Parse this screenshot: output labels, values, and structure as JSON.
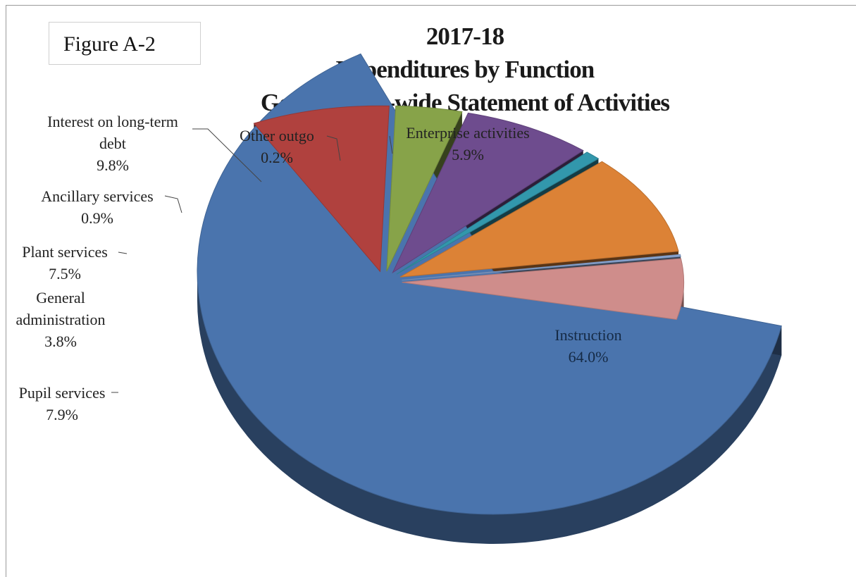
{
  "figure_label": "Figure A-2",
  "chart_data": {
    "type": "pie",
    "title": [
      "2017-18",
      "Expenditures by Function",
      "Government-wide  Statement of Activities"
    ],
    "unit": "%",
    "slices": [
      {
        "label": "Instruction",
        "value": 64.0,
        "display": "64.0%",
        "color": "#4a74ad"
      },
      {
        "label": "Pupil services",
        "value": 7.9,
        "display": "7.9%",
        "color": "#b0413e"
      },
      {
        "label": "General administration",
        "value": 3.8,
        "display": "3.8%",
        "color": "#87a349"
      },
      {
        "label": "Plant services",
        "value": 7.5,
        "display": "7.5%",
        "color": "#6e4c8e"
      },
      {
        "label": "Ancillary services",
        "value": 0.9,
        "display": "0.9%",
        "color": "#3297ac"
      },
      {
        "label": "Interest on long-term debt",
        "value": 9.8,
        "display": "9.8%",
        "color": "#dc8236"
      },
      {
        "label": "Other outgo",
        "value": 0.2,
        "display": "0.2%",
        "color": "#8aa6d2"
      },
      {
        "label": "Enterprise activities",
        "value": 5.9,
        "display": "5.9%",
        "color": "#cf8d8b"
      }
    ],
    "style": "3d-exploded",
    "legend": "none"
  }
}
